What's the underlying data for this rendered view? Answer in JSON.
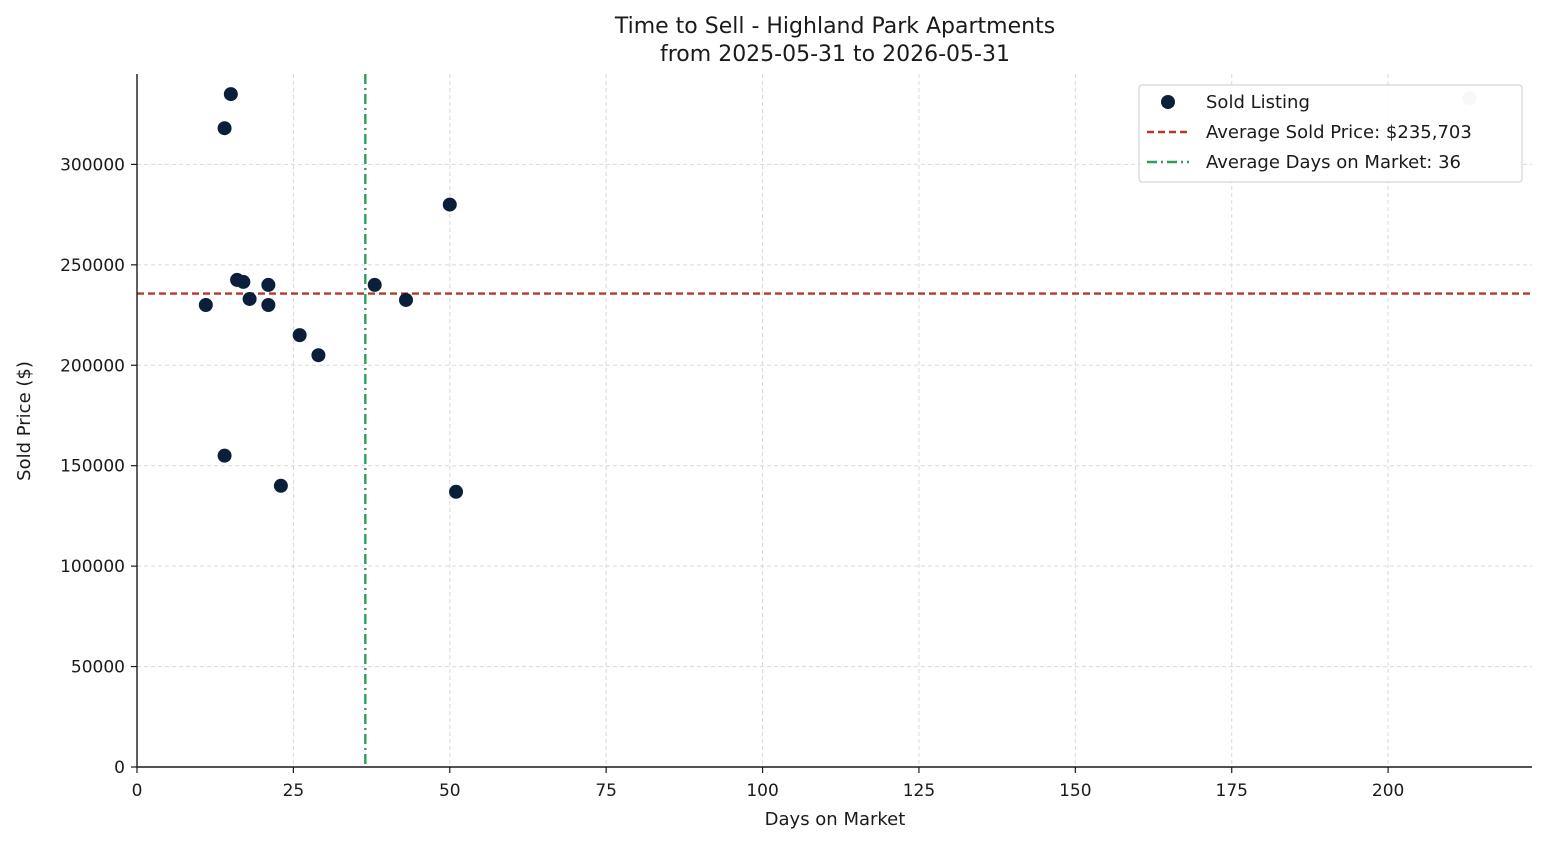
{
  "chart_data": {
    "type": "scatter",
    "title_line1": "Time to Sell - Highland Park Apartments",
    "title_line2": "from 2025-05-31 to 2026-05-31",
    "xlabel": "Days on Market",
    "ylabel": "Sold Price ($)",
    "xlim": [
      0,
      223
    ],
    "ylim": [
      0,
      345000
    ],
    "xticks": [
      0,
      25,
      50,
      75,
      100,
      125,
      150,
      175,
      200
    ],
    "yticks": [
      0,
      50000,
      100000,
      150000,
      200000,
      250000,
      300000
    ],
    "grid": true,
    "legend_position": "top-right",
    "colors": {
      "points": "#0b1f3a",
      "avg_price_line": "#b5392a",
      "avg_days_line": "#2e9e5b",
      "faded_point": "#c3ccd6"
    },
    "series": [
      {
        "name": "Sold Listing",
        "points": [
          {
            "x": 11,
            "y": 230000
          },
          {
            "x": 14,
            "y": 318000
          },
          {
            "x": 14,
            "y": 155000
          },
          {
            "x": 15,
            "y": 335000
          },
          {
            "x": 16,
            "y": 242500
          },
          {
            "x": 17,
            "y": 241500
          },
          {
            "x": 18,
            "y": 233000
          },
          {
            "x": 21,
            "y": 240000
          },
          {
            "x": 21,
            "y": 230000
          },
          {
            "x": 23,
            "y": 140000
          },
          {
            "x": 26,
            "y": 215000
          },
          {
            "x": 29,
            "y": 205000
          },
          {
            "x": 38,
            "y": 240000
          },
          {
            "x": 43,
            "y": 232500
          },
          {
            "x": 50,
            "y": 280000
          },
          {
            "x": 51,
            "y": 137000
          }
        ]
      }
    ],
    "faded_points": [
      {
        "x": 213,
        "y": 333000
      }
    ],
    "reference_lines": [
      {
        "name": "Average Sold Price: $235,703",
        "axis": "y",
        "value": 235703,
        "style": "dashed"
      },
      {
        "name": "Average Days on Market: 36",
        "axis": "x",
        "value": 36.5,
        "style": "dashdot"
      }
    ]
  }
}
